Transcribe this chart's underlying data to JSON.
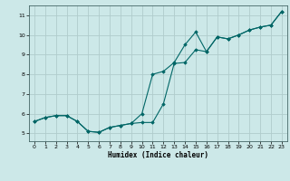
{
  "xlabel": "Humidex (Indice chaleur)",
  "bg_color": "#cce8e8",
  "line_color": "#006666",
  "grid_color": "#b0cccc",
  "xlim": [
    -0.5,
    23.5
  ],
  "ylim": [
    4.6,
    11.5
  ],
  "xticks": [
    0,
    1,
    2,
    3,
    4,
    5,
    6,
    7,
    8,
    9,
    10,
    11,
    12,
    13,
    14,
    15,
    16,
    17,
    18,
    19,
    20,
    21,
    22,
    23
  ],
  "yticks": [
    5,
    6,
    7,
    8,
    9,
    10,
    11
  ],
  "series1_x": [
    0,
    1,
    2,
    3,
    4,
    5,
    6,
    7,
    8,
    9,
    10,
    11,
    12,
    13,
    14,
    15,
    16,
    17,
    18,
    19,
    20,
    21,
    22,
    23
  ],
  "series1_y": [
    5.6,
    5.8,
    5.9,
    5.9,
    5.6,
    5.1,
    5.05,
    5.3,
    5.4,
    5.5,
    6.0,
    8.0,
    8.15,
    8.6,
    9.5,
    10.15,
    9.15,
    9.9,
    9.8,
    10.0,
    10.25,
    10.4,
    10.5,
    11.2
  ],
  "series2_x": [
    0,
    1,
    2,
    3,
    4,
    5,
    6,
    7,
    8,
    9,
    10,
    11,
    12,
    13,
    14,
    15,
    16,
    17,
    18,
    19,
    20,
    21,
    22,
    23
  ],
  "series2_y": [
    5.6,
    5.8,
    5.9,
    5.9,
    5.6,
    5.1,
    5.05,
    5.3,
    5.4,
    5.5,
    5.55,
    5.55,
    6.5,
    8.55,
    8.6,
    9.25,
    9.15,
    9.9,
    9.8,
    10.0,
    10.25,
    10.4,
    10.5,
    11.2
  ]
}
